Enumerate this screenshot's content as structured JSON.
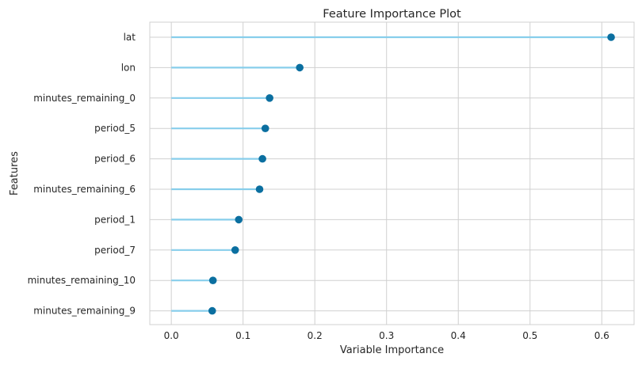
{
  "chart_data": {
    "type": "lollipop",
    "title": "Feature Importance Plot",
    "xlabel": "Variable Importance",
    "ylabel": "Features",
    "xlim": [
      -0.03,
      0.645
    ],
    "xticks": [
      0.0,
      0.1,
      0.2,
      0.3,
      0.4,
      0.5,
      0.6
    ],
    "xtick_labels": [
      "0.0",
      "0.1",
      "0.2",
      "0.3",
      "0.4",
      "0.5",
      "0.6"
    ],
    "grid": true,
    "categories": [
      "lat",
      "lon",
      "minutes_remaining_0",
      "period_5",
      "period_6",
      "minutes_remaining_6",
      "period_1",
      "period_7",
      "minutes_remaining_10",
      "minutes_remaining_9"
    ],
    "values": [
      0.613,
      0.179,
      0.137,
      0.131,
      0.127,
      0.123,
      0.094,
      0.089,
      0.058,
      0.057
    ],
    "colors": {
      "stem": "#87ceeb",
      "marker": "#0b6fa0",
      "grid": "#d0d0d0",
      "text": "#262626"
    }
  }
}
